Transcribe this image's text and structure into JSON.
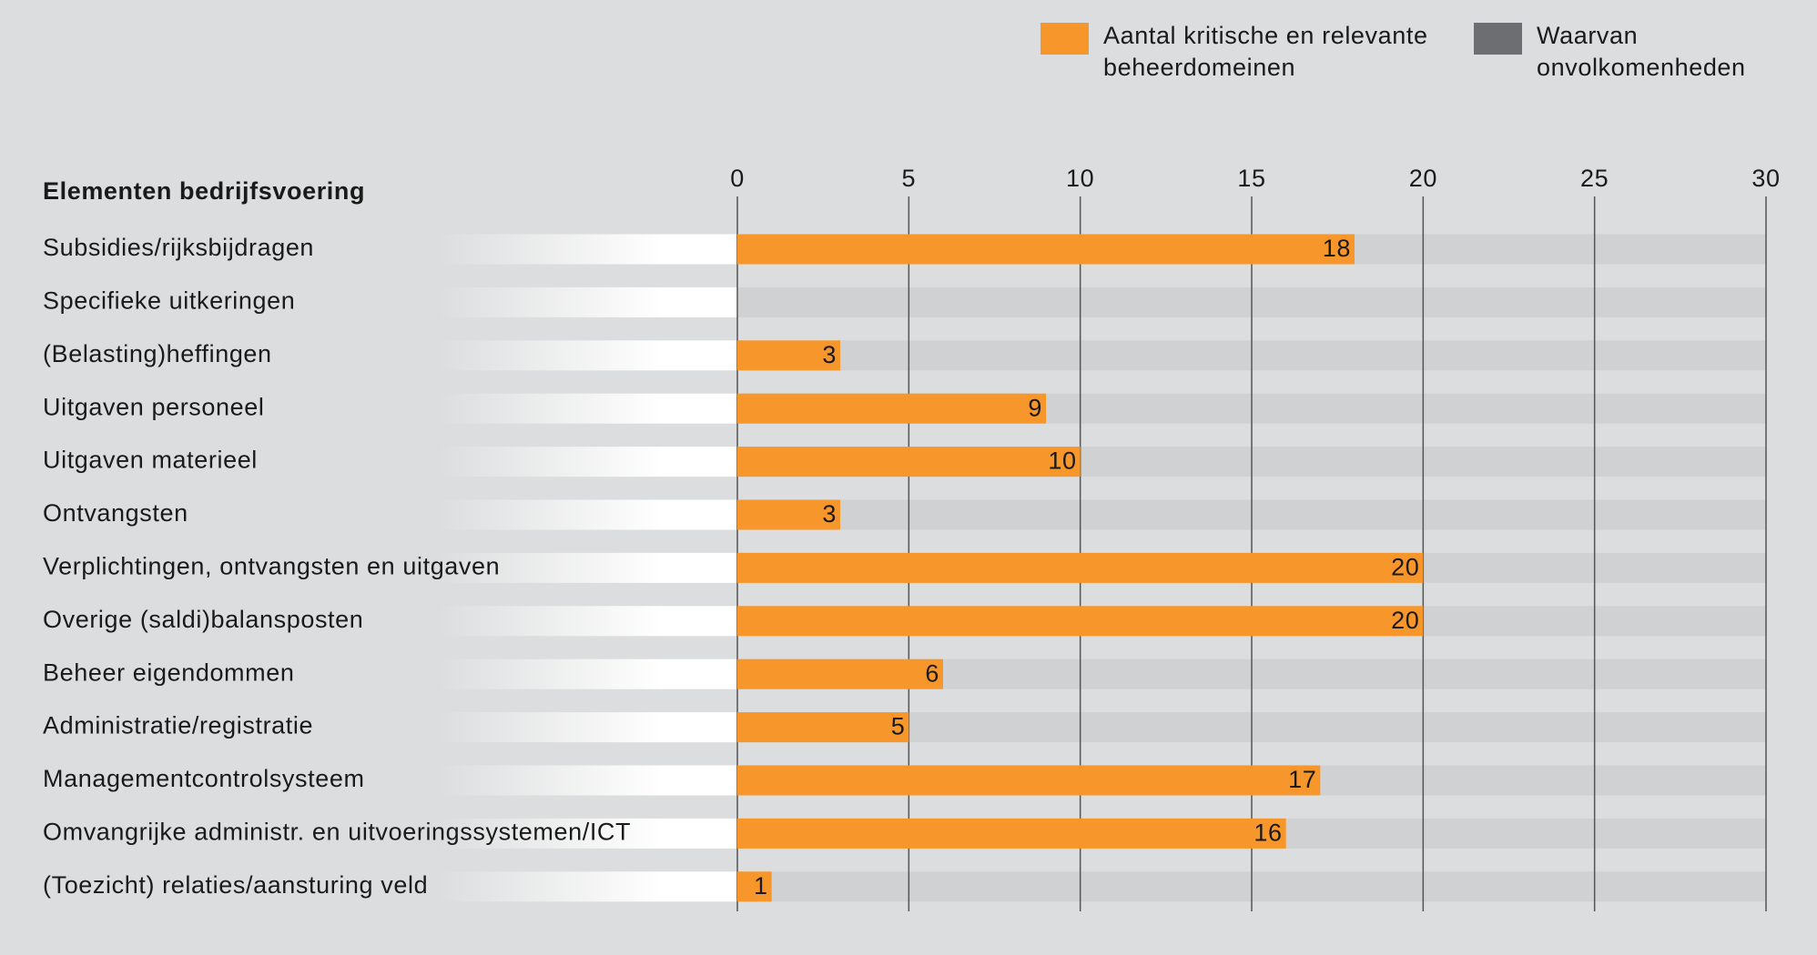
{
  "chart_data": {
    "type": "bar",
    "orientation": "horizontal",
    "category_header": "Elementen bedrijfsvoering",
    "categories": [
      "Subsidies/rijksbijdragen",
      "Specifieke uitkeringen",
      "(Belasting)heffingen",
      "Uitgaven personeel",
      "Uitgaven materieel",
      "Ontvangsten",
      "Verplichtingen, ontvangsten en uitgaven",
      "Overige (saldi)balansposten",
      "Beheer eigendommen",
      "Administratie/registratie",
      "Managementcontrolsysteem",
      "Omvangrijke administr. en uitvoeringssystemen/ICT",
      "(Toezicht) relaties/aansturing veld"
    ],
    "series": [
      {
        "name": "Aantal kritische en relevante beheerdomeinen",
        "color": "#f7962a",
        "values": [
          18,
          null,
          3,
          9,
          10,
          3,
          20,
          20,
          6,
          5,
          17,
          16,
          1
        ]
      },
      {
        "name": "Waarvan onvolkomenheden",
        "color": "#6d6e71",
        "values": [
          null,
          null,
          null,
          null,
          null,
          null,
          null,
          null,
          null,
          null,
          null,
          null,
          null
        ]
      }
    ],
    "xlim": [
      0,
      30
    ],
    "xticks": [
      0,
      5,
      10,
      15,
      20,
      25,
      30
    ],
    "grid": true
  }
}
